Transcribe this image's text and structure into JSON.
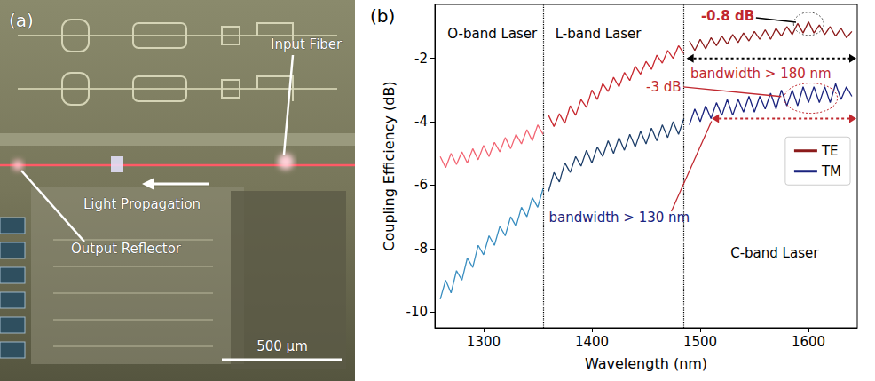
{
  "panel_a": {
    "label": "(a)",
    "annotations": [
      "Input Fiber",
      "Light Propagation",
      "Output Reflector"
    ],
    "scale_bar": "500 µm"
  },
  "chart_data": {
    "type": "line",
    "label": "(b)",
    "x_label": "Wavelength (nm)",
    "y_label": "Coupling Efficiency (dB)",
    "xlim": [
      1255,
      1645
    ],
    "xticks": [
      1300,
      1400,
      1500,
      1600
    ],
    "ylim": [
      -10.5,
      -0.3
    ],
    "yticks": [
      -10,
      -8,
      -6,
      -4,
      -2
    ],
    "grid": false,
    "legend": "right",
    "band_edges": [
      1355,
      1485
    ],
    "annotations": [
      "O-band Laser",
      "L-band Laser",
      "C-band Laser",
      "-0.8 dB",
      "-3 dB",
      "bandwidth > 180 nm",
      "bandwidth > 130 nm"
    ],
    "series": [
      {
        "name": "TE",
        "color": "#8b1a1a",
        "x": [
          1490,
          1495,
          1500,
          1505,
          1510,
          1515,
          1520,
          1525,
          1530,
          1535,
          1540,
          1545,
          1550,
          1555,
          1560,
          1565,
          1570,
          1575,
          1580,
          1585,
          1590,
          1595,
          1600,
          1605,
          1610,
          1615,
          1620,
          1625,
          1630,
          1635,
          1640
        ],
        "values": [
          -1.45,
          -1.75,
          -1.4,
          -1.7,
          -1.35,
          -1.6,
          -1.3,
          -1.55,
          -1.25,
          -1.5,
          -1.2,
          -1.45,
          -1.15,
          -1.4,
          -1.1,
          -1.4,
          -1.05,
          -1.3,
          -1.0,
          -1.25,
          -0.9,
          -1.2,
          -0.85,
          -1.2,
          -0.95,
          -1.25,
          -1.0,
          -1.3,
          -1.05,
          -1.35,
          -1.15
        ]
      },
      {
        "name": "TE",
        "color": "#c8282f",
        "x": [
          1360,
          1365,
          1370,
          1375,
          1380,
          1385,
          1390,
          1395,
          1400,
          1405,
          1410,
          1415,
          1420,
          1425,
          1430,
          1435,
          1440,
          1445,
          1450,
          1455,
          1460,
          1465,
          1470,
          1475,
          1480,
          1485
        ],
        "values": [
          -3.8,
          -4.15,
          -3.75,
          -4.05,
          -3.5,
          -3.8,
          -3.3,
          -3.55,
          -3.0,
          -3.3,
          -2.8,
          -3.05,
          -2.6,
          -2.9,
          -2.45,
          -2.7,
          -2.25,
          -2.5,
          -2.1,
          -2.35,
          -1.9,
          -2.15,
          -1.75,
          -2.0,
          -1.6,
          -1.85
        ]
      },
      {
        "name": "TE",
        "color": "#f26472",
        "x": [
          1260,
          1265,
          1270,
          1275,
          1280,
          1285,
          1290,
          1295,
          1300,
          1305,
          1310,
          1315,
          1320,
          1325,
          1330,
          1335,
          1340,
          1345,
          1350,
          1355
        ],
        "values": [
          -5.1,
          -5.45,
          -5.0,
          -5.35,
          -4.95,
          -5.3,
          -4.85,
          -5.2,
          -4.75,
          -5.1,
          -4.65,
          -4.95,
          -4.5,
          -4.85,
          -4.4,
          -4.7,
          -4.25,
          -4.6,
          -4.1,
          -4.4
        ]
      },
      {
        "name": "TM",
        "color": "#1a237e",
        "x": [
          1490,
          1495,
          1500,
          1505,
          1510,
          1515,
          1520,
          1525,
          1530,
          1535,
          1540,
          1545,
          1550,
          1555,
          1560,
          1565,
          1570,
          1575,
          1580,
          1585,
          1590,
          1595,
          1600,
          1605,
          1610,
          1615,
          1620,
          1625,
          1630,
          1635,
          1640
        ],
        "values": [
          -4.1,
          -3.6,
          -4.0,
          -3.5,
          -3.9,
          -3.4,
          -3.8,
          -3.3,
          -3.8,
          -3.3,
          -3.7,
          -3.2,
          -3.7,
          -3.2,
          -3.6,
          -3.1,
          -3.6,
          -3.0,
          -3.5,
          -3.0,
          -3.5,
          -2.9,
          -3.4,
          -2.9,
          -3.4,
          -2.9,
          -3.4,
          -2.8,
          -3.3,
          -2.9,
          -3.2
        ]
      },
      {
        "name": "TM",
        "color": "#1e3f6a",
        "x": [
          1360,
          1365,
          1370,
          1375,
          1380,
          1385,
          1390,
          1395,
          1400,
          1405,
          1410,
          1415,
          1420,
          1425,
          1430,
          1435,
          1440,
          1445,
          1450,
          1455,
          1460,
          1465,
          1470,
          1475,
          1480,
          1485
        ],
        "values": [
          -6.2,
          -5.6,
          -5.9,
          -5.3,
          -5.6,
          -5.1,
          -5.4,
          -4.9,
          -5.3,
          -4.8,
          -5.1,
          -4.6,
          -5.0,
          -4.5,
          -4.9,
          -4.4,
          -4.8,
          -4.3,
          -4.7,
          -4.2,
          -4.6,
          -4.1,
          -4.5,
          -4.0,
          -4.4,
          -3.9
        ]
      },
      {
        "name": "TM",
        "color": "#3a8ec0",
        "x": [
          1260,
          1265,
          1270,
          1275,
          1280,
          1285,
          1290,
          1295,
          1300,
          1305,
          1310,
          1315,
          1320,
          1325,
          1330,
          1335,
          1340,
          1345,
          1350,
          1355
        ],
        "values": [
          -9.6,
          -9.0,
          -9.4,
          -8.7,
          -9.0,
          -8.3,
          -8.6,
          -7.9,
          -8.2,
          -7.6,
          -7.9,
          -7.3,
          -7.6,
          -7.0,
          -7.3,
          -6.7,
          -7.0,
          -6.4,
          -6.7,
          -6.1
        ]
      }
    ]
  }
}
